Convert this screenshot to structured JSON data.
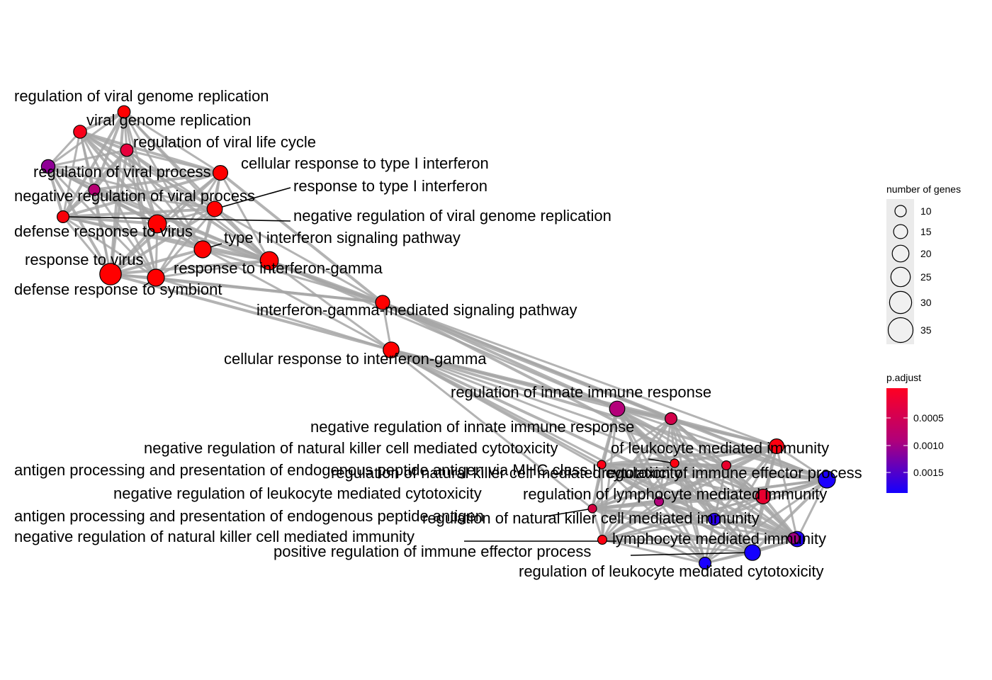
{
  "colors": {
    "edge": "#a6a6a6",
    "node_stroke": "#000000",
    "low_p": "#ff0000",
    "high_p": "#0000ff",
    "legend_bg": "#ebebeb"
  },
  "nodes": [
    {
      "id": "n1",
      "label": "regulation of viral genome replication",
      "genes": 14,
      "color": "#ff0000"
    },
    {
      "id": "n2",
      "label": "viral genome replication",
      "genes": 15,
      "color": "#f8001a"
    },
    {
      "id": "n3",
      "label": "regulation of viral life cycle",
      "genes": 14,
      "color": "#e6003c"
    },
    {
      "id": "n4",
      "label": "regulation of viral process",
      "genes": 16,
      "color": "#8f0096"
    },
    {
      "id": "n5",
      "label": "negative regulation of viral process",
      "genes": 12,
      "color": "#b50073"
    },
    {
      "id": "n6",
      "label": "cellular response to type I interferon",
      "genes": 18,
      "color": "#ff0000"
    },
    {
      "id": "n7",
      "label": "response to type I interferon",
      "genes": 19,
      "color": "#ff0000"
    },
    {
      "id": "n8",
      "label": "negative regulation of viral genome replication",
      "genes": 13,
      "color": "#f8000a"
    },
    {
      "id": "n9",
      "label": "defense response to virus",
      "genes": 24,
      "color": "#ff0000"
    },
    {
      "id": "n10",
      "label": "type I interferon signaling pathway",
      "genes": 22,
      "color": "#ff0000"
    },
    {
      "id": "n11",
      "label": "response to virus",
      "genes": 30,
      "color": "#ff0000"
    },
    {
      "id": "n12",
      "label": "response to interferon-gamma",
      "genes": 24,
      "color": "#ff0000"
    },
    {
      "id": "n13",
      "label": "defense response to symbiont",
      "genes": 22,
      "color": "#ff0000"
    },
    {
      "id": "n14",
      "label": "interferon-gamma-mediated signaling pathway",
      "genes": 17,
      "color": "#ff0000"
    },
    {
      "id": "n15",
      "label": "cellular response to interferon-gamma",
      "genes": 20,
      "color": "#ff0000"
    },
    {
      "id": "n16",
      "label": "regulation of innate immune response",
      "genes": 19,
      "color": "#b4007a"
    },
    {
      "id": "n17",
      "label": "negative regulation of innate immune response",
      "genes": 13,
      "color": "#d2004a"
    },
    {
      "id": "n18",
      "label": "negative regulation of natural killer cell mediated cytotoxicity",
      "genes": 7,
      "color": "#ff0010"
    },
    {
      "id": "n19",
      "label": "of leukocyte mediated immunity",
      "genes": 18,
      "color": "#ff0010"
    },
    {
      "id": "n20",
      "label": "antigen processing and presentation of endogenous peptide antigen via MHC class I",
      "genes": 7,
      "color": "#ff0018"
    },
    {
      "id": "n21",
      "label": "regulation of natural killer cell mediated cytotoxicity",
      "genes": 8,
      "color": "#e8002c"
    },
    {
      "id": "n22",
      "label": "regulation of immune effector process",
      "genes": 22,
      "color": "#1c00ff"
    },
    {
      "id": "n23",
      "label": "negative regulation of leukocyte mediated cytotoxicity",
      "genes": 8,
      "color": "#b0007a"
    },
    {
      "id": "n24",
      "label": "regulation of lymphocyte mediated immunity",
      "genes": 18,
      "color": "#e80030"
    },
    {
      "id": "n25",
      "label": "antigen processing and presentation of endogenous peptide antigen",
      "genes": 7,
      "color": "#d40040"
    },
    {
      "id": "n26",
      "label": "regulation of natural killer cell mediated immunity",
      "genes": 13,
      "color": "#2a00f0"
    },
    {
      "id": "n27",
      "label": "negative regulation of natural killer cell mediated immunity",
      "genes": 8,
      "color": "#ff0010"
    },
    {
      "id": "n28",
      "label": "lymphocyte mediated immunity",
      "genes": 19,
      "color": "#2200f6"
    },
    {
      "id": "n29",
      "label": "positive regulation of immune effector process",
      "genes": 20,
      "color": "#1400ff"
    },
    {
      "id": "n30",
      "label": "regulation of leukocyte mediated cytotoxicity",
      "genes": 13,
      "color": "#1a00ff"
    },
    {
      "id": "n31",
      "label": "",
      "genes": 12,
      "color": "#9a0080"
    }
  ],
  "legend": {
    "size_title": "number of genes",
    "size_values": [
      10,
      15,
      20,
      25,
      30,
      35
    ],
    "color_title": "p.adjust",
    "color_ticks": [
      "0.0005",
      "0.0010",
      "0.0015"
    ]
  }
}
